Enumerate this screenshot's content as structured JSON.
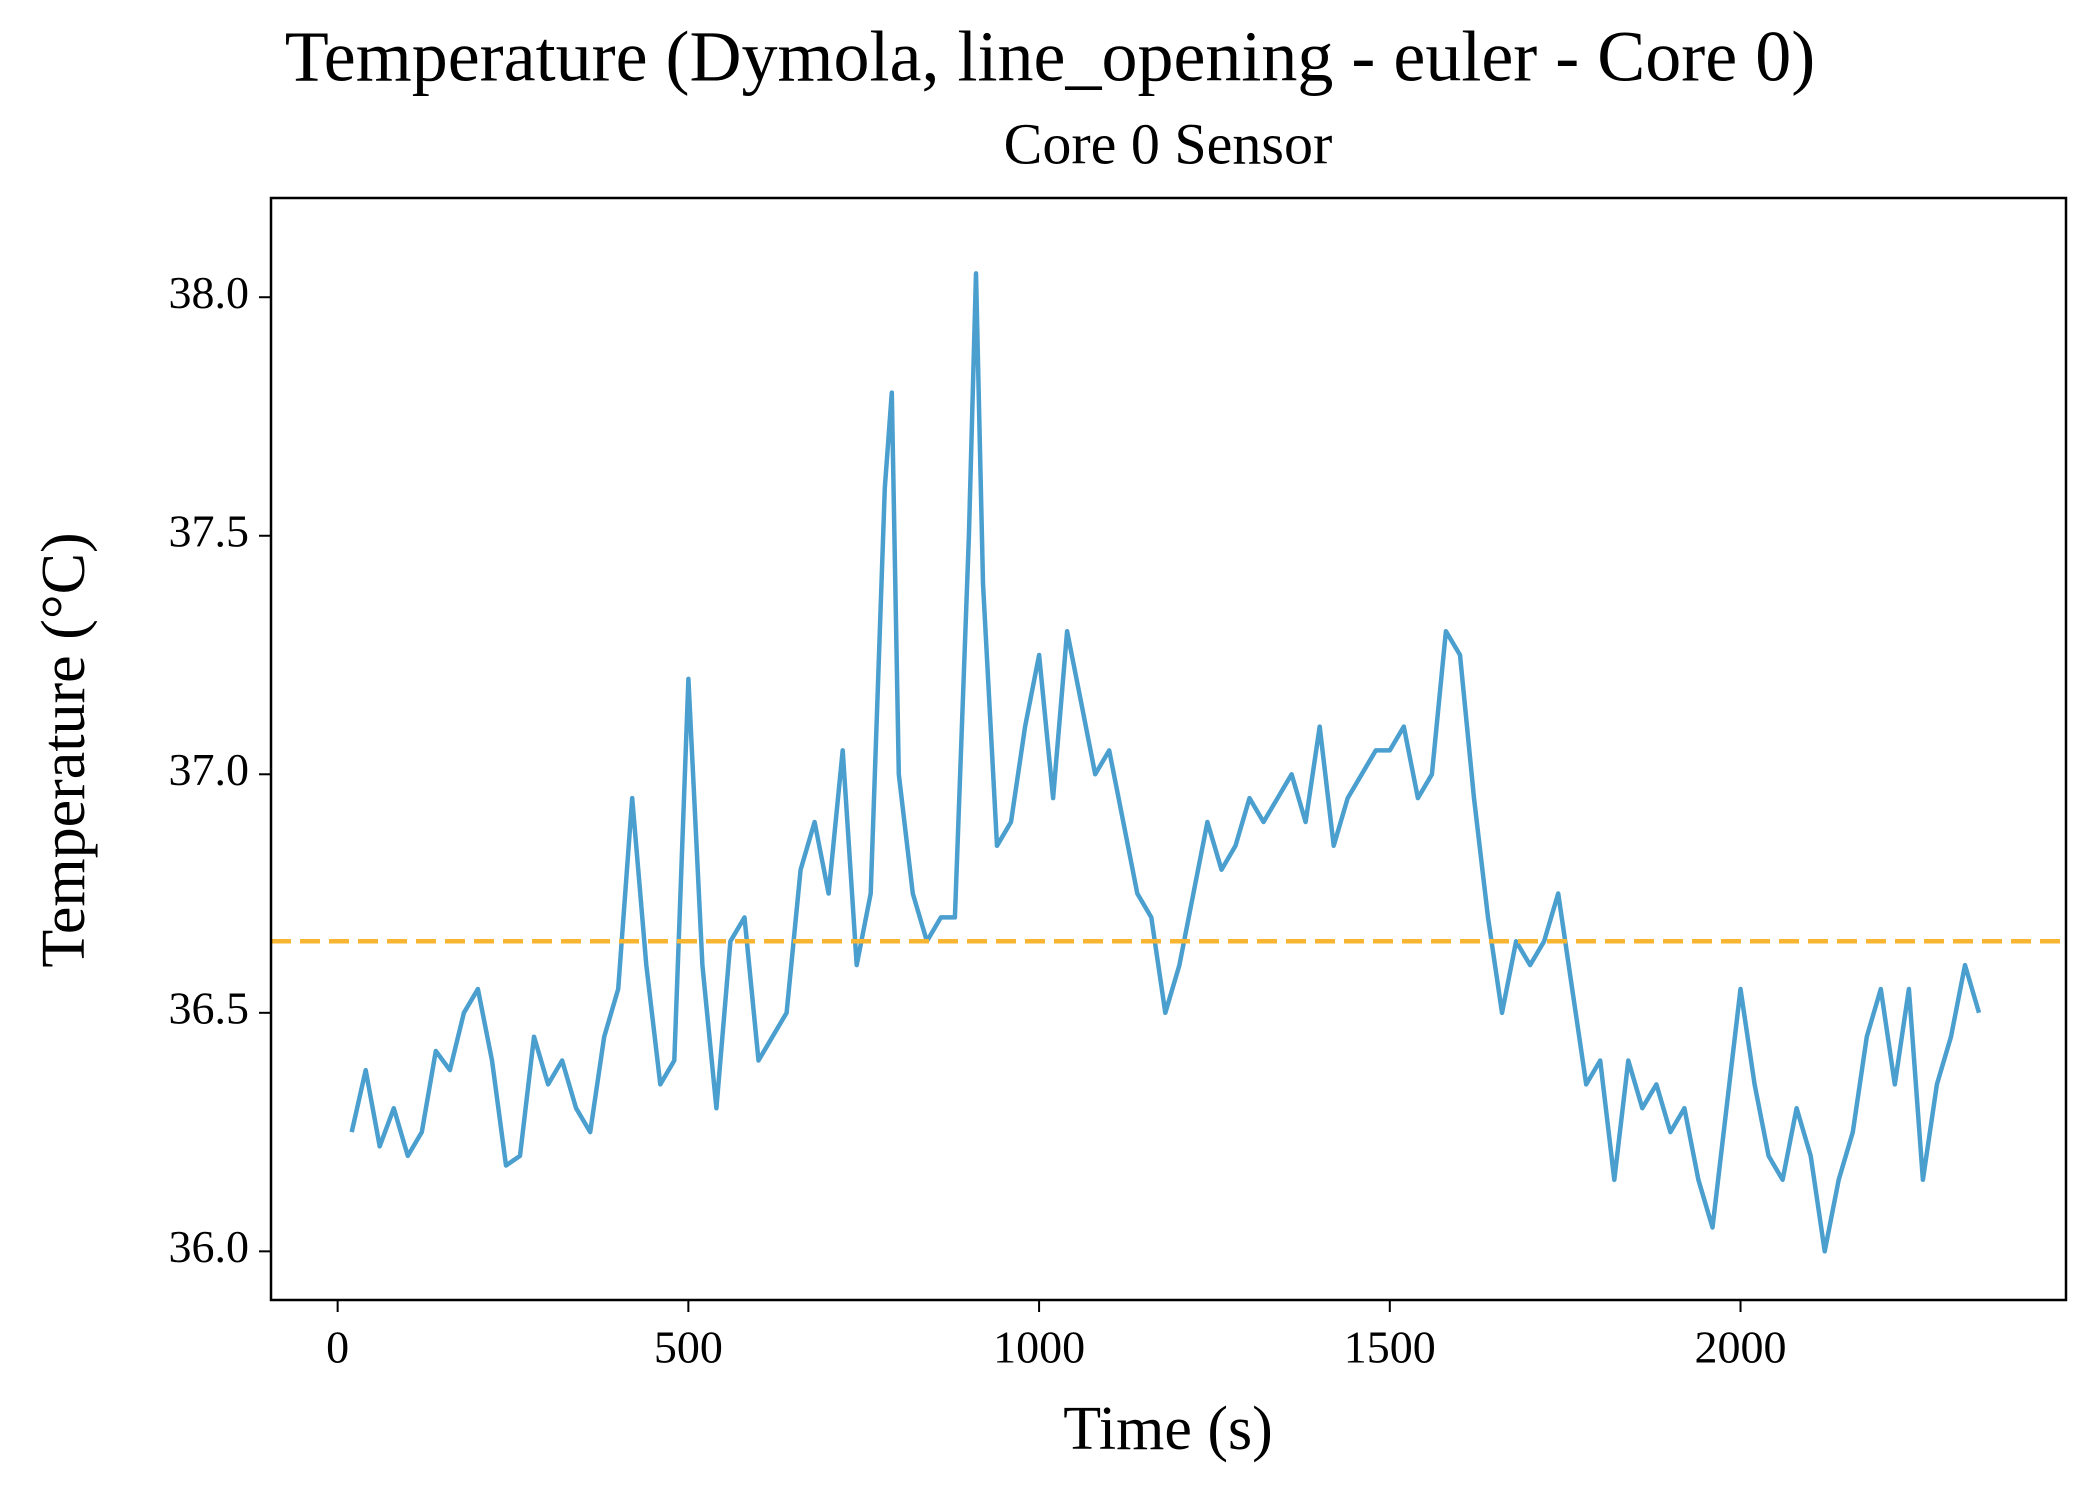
{
  "chart_data": {
    "type": "line",
    "title": "Temperature (Dymola, line_opening - euler - Core 0)",
    "subtitle": "Core 0 Sensor",
    "x_label": "Time (s)",
    "y_label": "Temperature (°C)",
    "x": [
      20,
      40,
      60,
      80,
      100,
      120,
      140,
      160,
      180,
      200,
      220,
      240,
      260,
      280,
      300,
      320,
      340,
      360,
      380,
      400,
      420,
      440,
      460,
      480,
      500,
      520,
      540,
      560,
      580,
      600,
      620,
      640,
      660,
      680,
      700,
      720,
      740,
      760,
      780,
      790,
      800,
      820,
      840,
      860,
      880,
      900,
      910,
      920,
      940,
      960,
      980,
      1000,
      1020,
      1040,
      1060,
      1080,
      1100,
      1120,
      1140,
      1160,
      1180,
      1200,
      1220,
      1240,
      1260,
      1280,
      1300,
      1320,
      1340,
      1360,
      1380,
      1400,
      1420,
      1440,
      1460,
      1480,
      1500,
      1520,
      1540,
      1560,
      1580,
      1600,
      1620,
      1640,
      1660,
      1680,
      1700,
      1720,
      1740,
      1760,
      1780,
      1800,
      1820,
      1840,
      1860,
      1880,
      1900,
      1920,
      1940,
      1960,
      1980,
      2000,
      2020,
      2040,
      2060,
      2080,
      2100,
      2120,
      2140,
      2160,
      2180,
      2200,
      2220,
      2240,
      2260,
      2280,
      2300,
      2320,
      2340
    ],
    "series": [
      {
        "color": "#4a9fcf",
        "values": [
          36.25,
          36.38,
          36.22,
          36.3,
          36.2,
          36.25,
          36.42,
          36.38,
          36.5,
          36.55,
          36.4,
          36.18,
          36.2,
          36.45,
          36.35,
          36.4,
          36.3,
          36.25,
          36.45,
          36.55,
          36.95,
          36.6,
          36.35,
          36.4,
          37.2,
          36.6,
          36.3,
          36.65,
          36.7,
          36.4,
          36.45,
          36.5,
          36.8,
          36.9,
          36.75,
          37.05,
          36.6,
          36.75,
          37.6,
          37.8,
          37.0,
          36.75,
          36.65,
          36.7,
          36.7,
          37.5,
          38.05,
          37.4,
          36.85,
          36.9,
          37.1,
          37.25,
          36.95,
          37.3,
          37.15,
          37.0,
          37.05,
          36.9,
          36.75,
          36.7,
          36.5,
          36.6,
          36.75,
          36.9,
          36.8,
          36.85,
          36.95,
          36.9,
          36.95,
          37.0,
          36.9,
          37.1,
          36.85,
          36.95,
          37.0,
          37.05,
          37.05,
          37.1,
          36.95,
          37.0,
          37.3,
          37.25,
          36.95,
          36.7,
          36.5,
          36.65,
          36.6,
          36.65,
          36.75,
          36.55,
          36.35,
          36.4,
          36.15,
          36.4,
          36.3,
          36.35,
          36.25,
          36.3,
          36.15,
          36.05,
          36.3,
          36.55,
          36.35,
          36.2,
          36.15,
          36.3,
          36.2,
          36.0,
          36.15,
          36.25,
          36.45,
          36.55,
          36.35,
          36.55,
          36.15,
          36.35,
          36.45,
          36.6,
          36.5
        ]
      }
    ],
    "reference_line": {
      "value": 36.65,
      "color": "#f7b531"
    },
    "xlim": [
      -95,
      2464
    ],
    "ylim": [
      35.898,
      38.208
    ],
    "xticks": [
      0,
      500,
      1000,
      1500,
      2000
    ],
    "yticks": [
      {
        "value": 36,
        "label": "36.0"
      },
      {
        "value": 36.5,
        "label": "36.5"
      },
      {
        "value": 37,
        "label": "37.0"
      },
      {
        "value": 37.5,
        "label": "37.5"
      },
      {
        "value": 38,
        "label": "38.0"
      }
    ]
  }
}
